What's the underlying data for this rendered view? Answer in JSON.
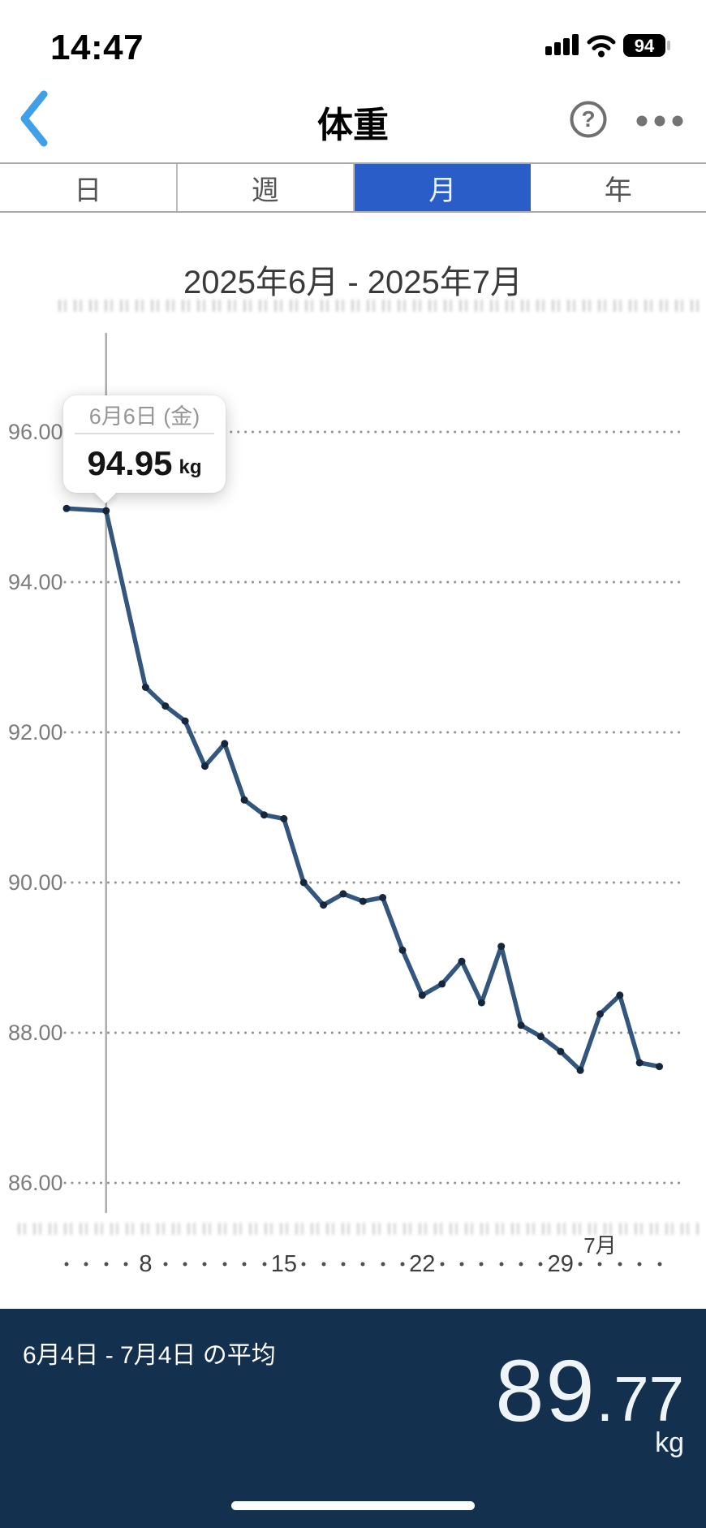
{
  "status_bar": {
    "time": "14:47",
    "battery_percent": "94"
  },
  "header": {
    "title": "体重",
    "help_glyph": "?"
  },
  "tabs": [
    {
      "label": "日",
      "active": false
    },
    {
      "label": "週",
      "active": false
    },
    {
      "label": "月",
      "active": true
    },
    {
      "label": "年",
      "active": false
    }
  ],
  "colors": {
    "accent_blue": "#2a5dc8",
    "back_chevron_blue": "#3fa0e9",
    "line_blue": "#33567e",
    "point_navy": "#16263c",
    "grid_gray": "#939393",
    "cursor_gray": "#ababab",
    "summary_bar_navy": "#14304f"
  },
  "tooltip": {
    "date": "6月6日 (金)",
    "value": "94.95",
    "unit": "kg"
  },
  "summary": {
    "label": "6月4日 - 7月4日 の平均",
    "value": "89.77",
    "value_int": "89",
    "value_frac": ".77",
    "unit": "kg"
  },
  "chart_data": {
    "type": "line",
    "title": "2025年6月 - 2025年7月",
    "ylabel": "kg",
    "ylim": [
      85.6,
      96.6
    ],
    "yticks": [
      96,
      94,
      92,
      90,
      88,
      86
    ],
    "ytick_labels": [
      "96.00",
      "94.00",
      "92.00",
      "90.00",
      "88.00",
      "86.00"
    ],
    "grid": "dotted-horizontal",
    "x_range_label": "6月4日 - 7月4日",
    "xtick_labels": [
      {
        "offset": 4,
        "label": "8"
      },
      {
        "offset": 11,
        "label": "15"
      },
      {
        "offset": 18,
        "label": "22"
      },
      {
        "offset": 25,
        "label": "29"
      }
    ],
    "month_label": {
      "text": "7月",
      "offset": 27
    },
    "selected_offset": 2,
    "series": [
      {
        "name": "体重",
        "unit": "kg",
        "points": [
          {
            "day": "6/4",
            "offset": 0,
            "kg": 94.98
          },
          {
            "day": "6/6",
            "offset": 2,
            "kg": 94.95
          },
          {
            "day": "6/8",
            "offset": 4,
            "kg": 92.6
          },
          {
            "day": "6/9",
            "offset": 5,
            "kg": 92.35
          },
          {
            "day": "6/10",
            "offset": 6,
            "kg": 92.15
          },
          {
            "day": "6/11",
            "offset": 7,
            "kg": 91.55
          },
          {
            "day": "6/12",
            "offset": 8,
            "kg": 91.85
          },
          {
            "day": "6/13",
            "offset": 9,
            "kg": 91.1
          },
          {
            "day": "6/14",
            "offset": 10,
            "kg": 90.9
          },
          {
            "day": "6/15",
            "offset": 11,
            "kg": 90.85
          },
          {
            "day": "6/16",
            "offset": 12,
            "kg": 90.0
          },
          {
            "day": "6/17",
            "offset": 13,
            "kg": 89.7
          },
          {
            "day": "6/18",
            "offset": 14,
            "kg": 89.85
          },
          {
            "day": "6/19",
            "offset": 15,
            "kg": 89.75
          },
          {
            "day": "6/20",
            "offset": 16,
            "kg": 89.8
          },
          {
            "day": "6/21",
            "offset": 17,
            "kg": 89.1
          },
          {
            "day": "6/22",
            "offset": 18,
            "kg": 88.5
          },
          {
            "day": "6/23",
            "offset": 19,
            "kg": 88.65
          },
          {
            "day": "6/24",
            "offset": 20,
            "kg": 88.95
          },
          {
            "day": "6/25",
            "offset": 21,
            "kg": 88.4
          },
          {
            "day": "6/26",
            "offset": 22,
            "kg": 89.15
          },
          {
            "day": "6/27",
            "offset": 23,
            "kg": 88.1
          },
          {
            "day": "6/28",
            "offset": 24,
            "kg": 87.95
          },
          {
            "day": "6/29",
            "offset": 25,
            "kg": 87.75
          },
          {
            "day": "6/30",
            "offset": 26,
            "kg": 87.5
          },
          {
            "day": "7/1",
            "offset": 27,
            "kg": 88.25
          },
          {
            "day": "7/2",
            "offset": 28,
            "kg": 88.5
          },
          {
            "day": "7/3",
            "offset": 29,
            "kg": 87.6
          },
          {
            "day": "7/4",
            "offset": 30,
            "kg": 87.55
          }
        ]
      }
    ],
    "average": {
      "label": "6月4日 - 7月4日 の平均",
      "value": 89.77,
      "unit": "kg"
    }
  }
}
